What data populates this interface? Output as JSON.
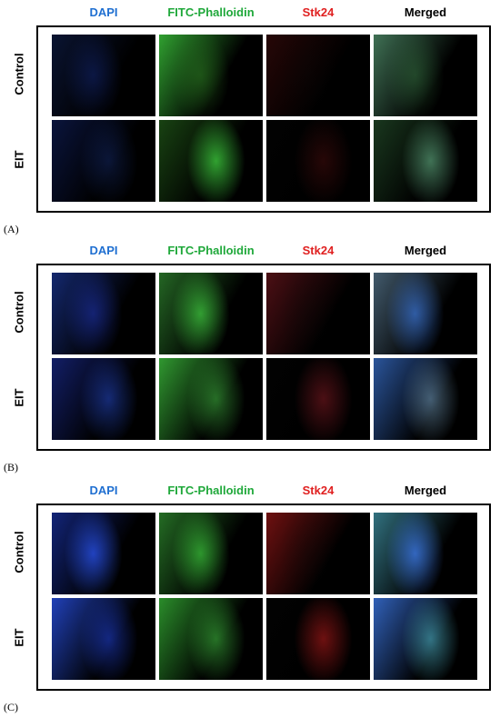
{
  "panels": [
    {
      "label": "(A)",
      "columns": [
        "DAPI",
        "FITC-Phalloidin",
        "Stk24",
        "Merged"
      ],
      "rows": [
        "Control",
        "EIT"
      ]
    },
    {
      "label": "(B)",
      "columns": [
        "DAPI",
        "FITC-Phalloidin",
        "Stk24",
        "Merged"
      ],
      "rows": [
        "Control",
        "EIT"
      ]
    },
    {
      "label": "(C)",
      "columns": [
        "DAPI",
        "FITC-Phalloidin",
        "Stk24",
        "Merged"
      ],
      "rows": [
        "Control",
        "EIT"
      ]
    }
  ]
}
